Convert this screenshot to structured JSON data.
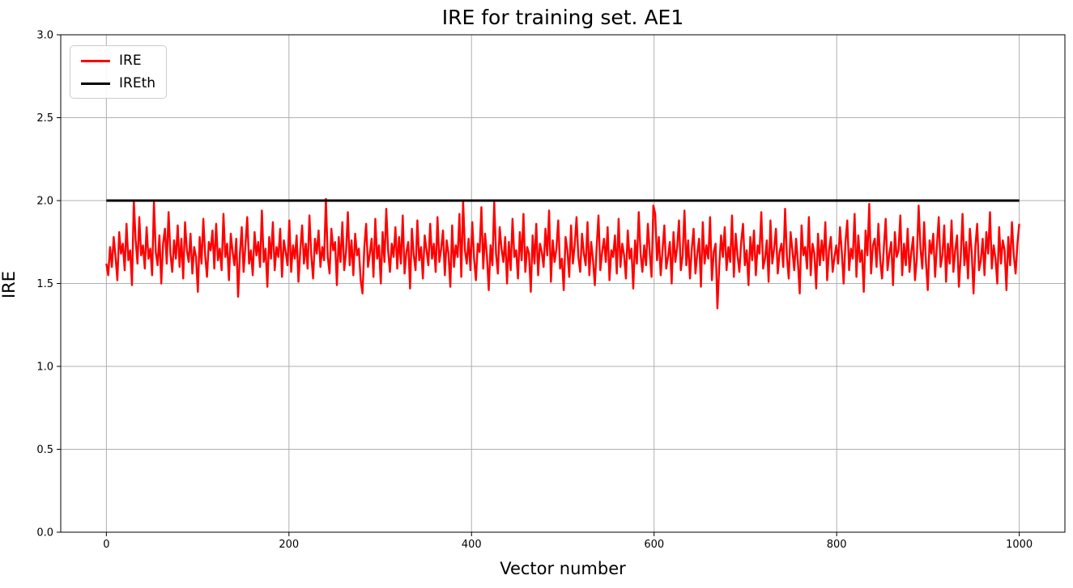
{
  "figure": {
    "title": "IRE for training set. AE1",
    "xlabel": "Vector number",
    "ylabel": "IRE"
  },
  "legend": {
    "position": "upper left",
    "items": [
      {
        "label": "IRE",
        "color": "#ff0000"
      },
      {
        "label": "IREth",
        "color": "#000000"
      }
    ]
  },
  "colors": {
    "background": "#ffffff",
    "grid": "#b0b0b0",
    "axes_border": "#000000",
    "tick_text": "#000000",
    "ire_line": "#ff0000",
    "ireth_line": "#000000"
  },
  "chart_data": {
    "type": "line",
    "title": "IRE for training set. AE1",
    "xlabel": "Vector number",
    "ylabel": "IRE",
    "xlim": [
      -50,
      1050
    ],
    "ylim": [
      0.0,
      3.0
    ],
    "xticks": [
      0,
      200,
      400,
      600,
      800,
      1000
    ],
    "xtick_labels": [
      "0",
      "200",
      "400",
      "600",
      "800",
      "1000"
    ],
    "yticks": [
      0.0,
      0.5,
      1.0,
      1.5,
      2.0,
      2.5,
      3.0
    ],
    "ytick_labels": [
      "0.0",
      "0.5",
      "1.0",
      "1.5",
      "2.0",
      "2.5",
      "3.0"
    ],
    "grid": true,
    "legend_position": "upper left",
    "series": [
      {
        "name": "IRE",
        "color": "#ff0000",
        "linewidth": 2.4,
        "x_start": 0,
        "x_end": 1000,
        "values": [
          1.62,
          1.55,
          1.72,
          1.6,
          1.78,
          1.66,
          1.52,
          1.81,
          1.68,
          1.74,
          1.58,
          1.86,
          1.64,
          1.7,
          1.49,
          2.0,
          1.76,
          1.62,
          1.9,
          1.67,
          1.73,
          1.59,
          1.84,
          1.65,
          1.71,
          1.55,
          1.99,
          1.69,
          1.61,
          1.79,
          1.5,
          1.74,
          1.83,
          1.62,
          1.93,
          1.68,
          1.57,
          1.76,
          1.65,
          1.85,
          1.6,
          1.77,
          1.53,
          1.87,
          1.7,
          1.63,
          1.8,
          1.56,
          1.72,
          1.66,
          1.45,
          1.78,
          1.62,
          1.89,
          1.67,
          1.54,
          1.75,
          1.7,
          1.82,
          1.59,
          1.86,
          1.64,
          1.71,
          1.58,
          1.92,
          1.66,
          1.74,
          1.52,
          1.8,
          1.69,
          1.61,
          1.77,
          1.42,
          1.68,
          1.84,
          1.57,
          1.73,
          1.9,
          1.62,
          1.7,
          1.55,
          1.81,
          1.67,
          1.75,
          1.6,
          1.94,
          1.63,
          1.71,
          1.48,
          1.78,
          1.65,
          1.87,
          1.58,
          1.72,
          1.66,
          1.83,
          1.54,
          1.76,
          1.69,
          1.61,
          1.88,
          1.57,
          1.73,
          1.65,
          1.79,
          1.51,
          1.7,
          1.85,
          1.62,
          1.74,
          1.59,
          1.91,
          1.67,
          1.53,
          1.77,
          1.68,
          1.82,
          1.6,
          1.72,
          1.64,
          2.01,
          1.66,
          1.56,
          1.83,
          1.7,
          1.75,
          1.49,
          1.78,
          1.63,
          1.87,
          1.58,
          1.69,
          1.93,
          1.61,
          1.76,
          1.55,
          1.8,
          1.67,
          1.71,
          1.52,
          1.44,
          1.72,
          1.86,
          1.6,
          1.68,
          1.77,
          1.54,
          1.89,
          1.65,
          1.73,
          1.5,
          1.81,
          1.63,
          1.95,
          1.7,
          1.57,
          1.74,
          1.66,
          1.84,
          1.59,
          1.78,
          1.62,
          1.91,
          1.56,
          1.69,
          1.75,
          1.47,
          1.83,
          1.67,
          1.58,
          1.88,
          1.64,
          1.72,
          1.53,
          1.79,
          1.7,
          1.61,
          1.86,
          1.65,
          1.74,
          1.57,
          1.9,
          1.63,
          1.71,
          1.82,
          1.55,
          1.76,
          1.68,
          1.48,
          1.85,
          1.6,
          1.73,
          1.66,
          1.92,
          1.54,
          2.0,
          1.7,
          1.62,
          1.77,
          1.58,
          1.87,
          1.65,
          1.52,
          1.74,
          1.69,
          1.96,
          1.59,
          1.8,
          1.67,
          1.46,
          1.73,
          1.61,
          1.99,
          1.68,
          1.56,
          1.84,
          1.71,
          1.63,
          1.78,
          1.5,
          1.75,
          1.58,
          1.89,
          1.66,
          1.7,
          1.53,
          1.81,
          1.64,
          1.92,
          1.57,
          1.72,
          1.68,
          1.45,
          1.79,
          1.62,
          1.86,
          1.55,
          1.74,
          1.69,
          1.6,
          1.83,
          1.67,
          1.94,
          1.51,
          1.76,
          1.63,
          1.71,
          1.88,
          1.59,
          1.65,
          1.46,
          1.78,
          1.7,
          1.54,
          1.85,
          1.62,
          1.73,
          1.9,
          1.66,
          1.57,
          1.8,
          1.68,
          1.61,
          1.87,
          1.55,
          1.75,
          1.64,
          1.49,
          1.72,
          1.91,
          1.58,
          1.69,
          1.77,
          1.63,
          1.84,
          1.52,
          1.7,
          1.66,
          1.79,
          1.56,
          1.89,
          1.6,
          1.74,
          1.67,
          1.53,
          1.82,
          1.65,
          1.71,
          1.47,
          1.76,
          1.62,
          1.93,
          1.68,
          1.57,
          1.73,
          1.61,
          1.86,
          1.69,
          1.54,
          1.97,
          1.92,
          1.64,
          1.78,
          1.55,
          1.7,
          1.85,
          1.59,
          1.66,
          1.75,
          1.5,
          1.81,
          1.63,
          1.72,
          1.88,
          1.58,
          1.67,
          1.94,
          1.61,
          1.76,
          1.53,
          1.71,
          1.83,
          1.56,
          1.68,
          1.77,
          1.48,
          1.87,
          1.62,
          1.73,
          1.65,
          1.9,
          1.52,
          1.69,
          1.74,
          1.35,
          1.6,
          1.79,
          1.66,
          1.84,
          1.58,
          1.72,
          1.63,
          1.91,
          1.54,
          1.8,
          1.67,
          1.57,
          1.75,
          1.86,
          1.61,
          1.7,
          1.49,
          1.78,
          1.64,
          1.82,
          1.55,
          1.73,
          1.68,
          1.93,
          1.59,
          1.65,
          1.76,
          1.51,
          1.88,
          1.62,
          1.71,
          1.83,
          1.56,
          1.69,
          1.74,
          1.6,
          1.95,
          1.66,
          1.53,
          1.81,
          1.7,
          1.58,
          1.77,
          1.63,
          1.44,
          1.85,
          1.67,
          1.72,
          1.59,
          1.9,
          1.55,
          1.74,
          1.68,
          1.47,
          1.8,
          1.61,
          1.76,
          1.64,
          1.87,
          1.52,
          1.7,
          1.78,
          1.57,
          1.66,
          1.73,
          1.62,
          1.84,
          1.69,
          1.5,
          1.75,
          1.88,
          1.58,
          1.71,
          1.65,
          1.92,
          1.54,
          1.79,
          1.63,
          1.7,
          1.45,
          1.82,
          1.67,
          1.98,
          1.56,
          1.73,
          1.77,
          1.6,
          1.86,
          1.64,
          1.53,
          1.72,
          1.89,
          1.58,
          1.68,
          1.75,
          1.49,
          1.81,
          1.66,
          1.7,
          1.91,
          1.55,
          1.74,
          1.61,
          1.83,
          1.57,
          1.69,
          1.78,
          1.52,
          1.65,
          1.97,
          1.71,
          1.59,
          1.87,
          1.63,
          1.46,
          1.76,
          1.68,
          1.8,
          1.54,
          1.73,
          1.9,
          1.6,
          1.67,
          1.85,
          1.51,
          1.74,
          1.62,
          1.88,
          1.57,
          1.7,
          1.79,
          1.48,
          1.66,
          1.92,
          1.61,
          1.75,
          1.53,
          1.83,
          1.69,
          1.44,
          1.72,
          1.86,
          1.58,
          1.64,
          1.77,
          1.55,
          1.81,
          1.68,
          1.93,
          1.59,
          1.73,
          1.65,
          1.5,
          1.84,
          1.62,
          1.76,
          1.7,
          1.46,
          1.78,
          1.61,
          1.87,
          1.67,
          1.56,
          1.74,
          1.86
        ]
      },
      {
        "name": "IREth",
        "color": "#000000",
        "linewidth": 3,
        "style": "constant",
        "value": 2.0,
        "x_start": 0,
        "x_end": 1000
      }
    ]
  }
}
